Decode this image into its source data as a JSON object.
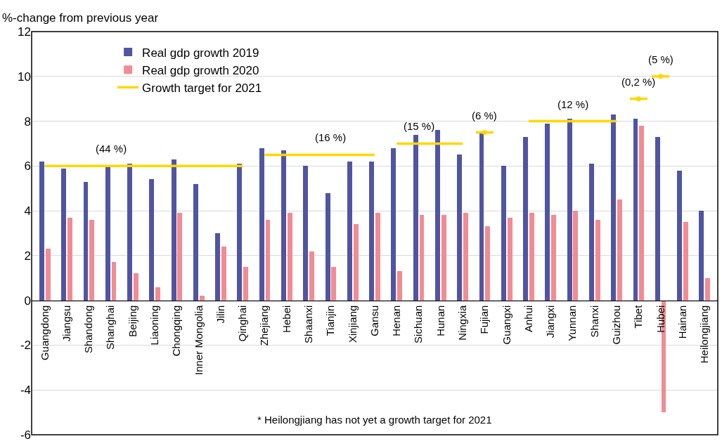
{
  "chart_data": {
    "type": "bar",
    "ylabel": "%-change from previous year",
    "categories": [
      "Guangdong",
      "Jiangsu",
      "Shandong",
      "Shanghai",
      "Beijing",
      "Liaoning",
      "Chongqing",
      "Inner Mongolia",
      "Jilin",
      "Qinghai",
      "Zhejiang",
      "Hebei",
      "Shaanxi",
      "Tianjin",
      "Xinjiang",
      "Gansu",
      "Henan",
      "Sichuan",
      "Hunan",
      "Ningxia",
      "Fujian",
      "Guangxi",
      "Anhui",
      "Jiangxi",
      "Yunnan",
      "Shanxi",
      "Guizhou",
      "Tibet",
      "Hubei",
      "Hainan",
      "Heilongjiang"
    ],
    "series": [
      {
        "name": "Real gdp growth 2019",
        "color": "#4f55a3",
        "values": [
          6.2,
          5.9,
          5.3,
          6.0,
          6.1,
          5.4,
          6.3,
          5.2,
          3.0,
          6.1,
          6.8,
          6.7,
          6.0,
          4.8,
          6.2,
          6.2,
          6.8,
          7.4,
          7.6,
          6.5,
          7.5,
          6.0,
          7.3,
          7.9,
          8.1,
          6.1,
          8.3,
          8.1,
          7.3,
          5.8,
          4.0
        ]
      },
      {
        "name": "Real gdp growth 2020",
        "color": "#f28b93",
        "values": [
          2.3,
          3.7,
          3.6,
          1.7,
          1.2,
          0.6,
          3.9,
          0.2,
          2.4,
          1.5,
          3.6,
          3.9,
          2.2,
          1.5,
          3.4,
          3.9,
          1.3,
          3.8,
          3.8,
          3.9,
          3.3,
          3.7,
          3.9,
          3.8,
          4.0,
          3.6,
          4.5,
          7.8,
          -5.0,
          3.5,
          1.0
        ]
      },
      {
        "name": "Growth target for 2021",
        "type": "line",
        "color": "#ffd700",
        "x": [
          "Guangdong",
          "Jiangsu",
          "Shandong",
          "Shanghai",
          "Beijing",
          "Liaoning",
          "Chongqing",
          "Inner Mongolia",
          "Jilin",
          "Qinghai"
        ],
        "values": [
          6,
          6,
          6,
          6,
          6,
          6,
          6,
          6,
          6,
          6
        ]
      },
      {
        "type": "line",
        "color": "#ffd700",
        "x": [
          "Zhejiang",
          "Hebei",
          "Shaanxi",
          "Tianjin",
          "Xinjiang",
          "Gansu"
        ],
        "values": [
          6.5,
          6.5,
          6.5,
          6.5,
          6.5,
          6.5
        ]
      },
      {
        "type": "line",
        "color": "#ffd700",
        "x": [
          "Henan",
          "Sichuan",
          "Hunan",
          "Ningxia"
        ],
        "values": [
          7,
          7,
          7,
          7
        ]
      },
      {
        "type": "line",
        "color": "#ffd700",
        "marker": "circle",
        "x": [
          "Fujian"
        ],
        "values": [
          7.5
        ]
      },
      {
        "type": "line",
        "color": "#ffd700",
        "x": [
          "Anhui",
          "Jiangxi",
          "Yunnan",
          "Shanxi",
          "Guizhou"
        ],
        "values": [
          8,
          8,
          8,
          8,
          8
        ]
      },
      {
        "type": "line",
        "color": "#ffd700",
        "marker": "circle",
        "x": [
          "Tibet"
        ],
        "values": [
          9
        ]
      },
      {
        "type": "line",
        "color": "#ffd700",
        "marker": "circle",
        "x": [
          "Hubei"
        ],
        "values": [
          10
        ]
      }
    ],
    "annotations": [
      {
        "text": "(44 %)",
        "x": "Shanghai",
        "y": 6
      },
      {
        "text": "(16 %)",
        "x": "Tianjin",
        "y": 6.5
      },
      {
        "text": "(15 %)",
        "x": "Sichuan",
        "y": 7
      },
      {
        "text": "(6 %)",
        "x": "Fujian",
        "y": 7.5
      },
      {
        "text": "(12 %)",
        "x": "Yunnan",
        "y": 8
      },
      {
        "text": "(0,2 %)",
        "x": "Tibet",
        "y": 9
      },
      {
        "text": "(5 %)",
        "x": "Hubei",
        "y": 10
      },
      "* Heilongjiang has not yet a growth target for 2021"
    ],
    "ylim": [
      -6,
      12
    ],
    "yticks": [
      -6,
      -4,
      -2,
      0,
      2,
      4,
      6,
      8,
      10,
      12
    ],
    "grid": "y",
    "legend": "top left"
  }
}
